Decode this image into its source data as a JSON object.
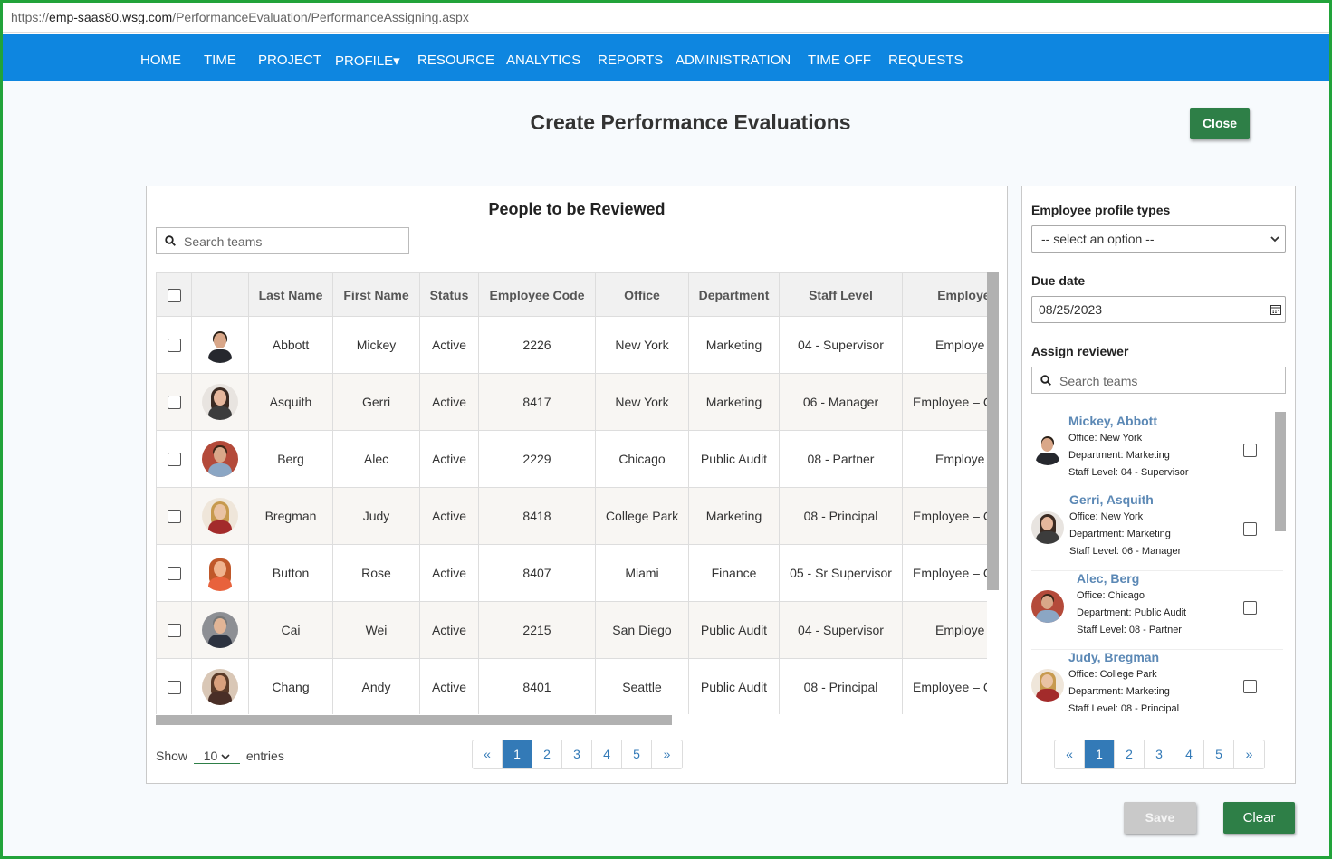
{
  "browser": {
    "url_prefix": "https://",
    "url_host": "emp-saas80.wsg.com",
    "url_path": "/PerformanceEvaluation/PerformanceAssigning.aspx"
  },
  "nav": {
    "items": [
      "HOME",
      "TIME",
      "PROJECT",
      "PROFILE▾",
      "RESOURCE",
      "ANALYTICS",
      "REPORTS",
      "ADMINISTRATION",
      "TIME OFF",
      "REQUESTS"
    ]
  },
  "page": {
    "title": "Create Performance Evaluations",
    "close_label": "Close",
    "save_label": "Save",
    "clear_label": "Clear"
  },
  "people_panel": {
    "title": "People to be Reviewed",
    "search_placeholder": "Search teams",
    "columns": [
      "Last Name",
      "First Name",
      "Status",
      "Employee Code",
      "Office",
      "Department",
      "Staff Level",
      "Employee T"
    ],
    "rows": [
      {
        "last": "Abbott",
        "first": "Mickey",
        "status": "Active",
        "code": "2226",
        "office": "New York",
        "dept": "Marketing",
        "level": "04 - Supervisor",
        "type": "Employe"
      },
      {
        "last": "Asquith",
        "first": "Gerri",
        "status": "Active",
        "code": "8417",
        "office": "New York",
        "dept": "Marketing",
        "level": "06 - Manager",
        "type": "Employee – C"
      },
      {
        "last": "Berg",
        "first": "Alec",
        "status": "Active",
        "code": "2229",
        "office": "Chicago",
        "dept": "Public Audit",
        "level": "08 - Partner",
        "type": "Employe"
      },
      {
        "last": "Bregman",
        "first": "Judy",
        "status": "Active",
        "code": "8418",
        "office": "College Park",
        "dept": "Marketing",
        "level": "08 - Principal",
        "type": "Employee – C"
      },
      {
        "last": "Button",
        "first": "Rose",
        "status": "Active",
        "code": "8407",
        "office": "Miami",
        "dept": "Finance",
        "level": "05 - Sr Supervisor",
        "type": "Employee – C"
      },
      {
        "last": "Cai",
        "first": "Wei",
        "status": "Active",
        "code": "2215",
        "office": "San Diego",
        "dept": "Public Audit",
        "level": "04 - Supervisor",
        "type": "Employe"
      },
      {
        "last": "Chang",
        "first": "Andy",
        "status": "Active",
        "code": "8401",
        "office": "Seattle",
        "dept": "Public Audit",
        "level": "08 - Principal",
        "type": "Employee – C"
      }
    ],
    "show_label": "Show",
    "entries_value": "10",
    "entries_label": "entries",
    "pager": [
      "«",
      "1",
      "2",
      "3",
      "4",
      "5",
      "»"
    ]
  },
  "side_panel": {
    "profile_types_label": "Employee profile types",
    "profile_types_value": "-- select an option --",
    "due_date_label": "Due date",
    "due_date_value": "08/25/2023",
    "assign_label": "Assign reviewer",
    "search_placeholder": "Search teams",
    "reviewers": [
      {
        "name": "Mickey, Abbott",
        "office": "Office: New York",
        "dept": "Department: Marketing",
        "level": "Staff Level: 04 - Supervisor"
      },
      {
        "name": "Gerri, Asquith",
        "office": "Office: New York",
        "dept": "Department: Marketing",
        "level": "Staff Level: 06 - Manager"
      },
      {
        "name": "Alec, Berg",
        "office": "Office: Chicago",
        "dept": "Department: Public Audit",
        "level": "Staff Level: 08 - Partner"
      },
      {
        "name": "Judy, Bregman",
        "office": "Office: College Park",
        "dept": "Department: Marketing",
        "level": "Staff Level: 08 - Principal"
      }
    ],
    "pager": [
      "«",
      "1",
      "2",
      "3",
      "4",
      "5",
      "»"
    ]
  },
  "colors": {
    "nav": "#0e86e0",
    "green_button": "#2e7f47",
    "pager_active": "#337ab7",
    "reviewer_name": "#5b88b5",
    "frame": "#22a33a"
  }
}
